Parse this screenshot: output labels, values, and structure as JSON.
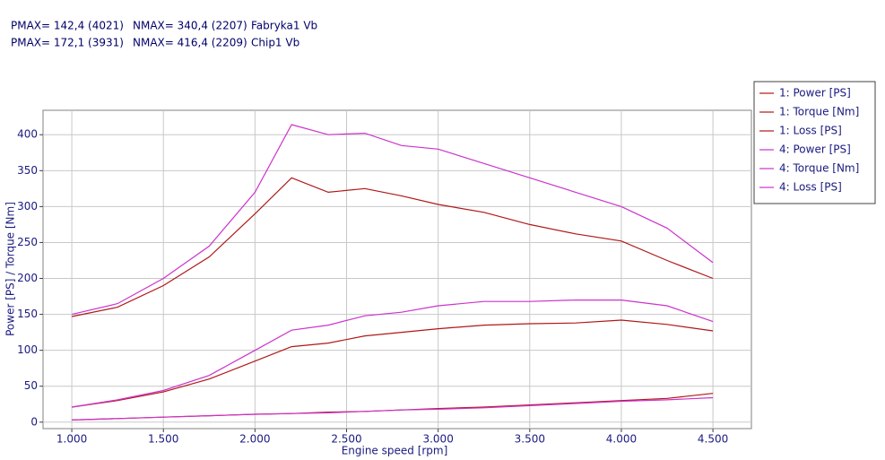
{
  "chart_data": {
    "type": "line",
    "annotations": [
      [
        "PMAX= 142,4 (4021)",
        "NMAX= 340,4 (2207)",
        "Fabryka1 Vb"
      ],
      [
        "PMAX= 172,1 (3931)",
        "NMAX= 416,4 (2209)",
        "Chip1 Vb"
      ]
    ],
    "x_label": "Engine speed [rpm]",
    "y_label": "Power [PS] / Torque [Nm]",
    "x": [
      1000,
      1250,
      1500,
      1750,
      2000,
      2200,
      2400,
      2600,
      2800,
      3000,
      3250,
      3500,
      3750,
      4000,
      4250,
      4500
    ],
    "series": [
      {
        "name": "1: Power [PS]",
        "color": "#b01818",
        "values": [
          21,
          30,
          42,
          60,
          85,
          105,
          110,
          120,
          125,
          130,
          135,
          137,
          138,
          142,
          136,
          127
        ]
      },
      {
        "name": "1: Torque [Nm]",
        "color": "#b01818",
        "values": [
          147,
          160,
          190,
          230,
          290,
          340,
          320,
          325,
          315,
          303,
          292,
          275,
          262,
          252,
          225,
          200
        ]
      },
      {
        "name": "1: Loss [PS]",
        "color": "#b01818",
        "values": [
          3,
          5,
          7,
          9,
          11,
          12,
          14,
          15,
          17,
          19,
          21,
          24,
          27,
          30,
          33,
          40
        ]
      },
      {
        "name": "4: Power [PS]",
        "color": "#cc33cc",
        "values": [
          21,
          31,
          44,
          65,
          100,
          128,
          135,
          148,
          153,
          162,
          168,
          168,
          170,
          170,
          162,
          140
        ]
      },
      {
        "name": "4: Torque [Nm]",
        "color": "#cc33cc",
        "values": [
          150,
          165,
          200,
          245,
          320,
          414,
          400,
          402,
          385,
          380,
          360,
          340,
          320,
          300,
          270,
          222
        ]
      },
      {
        "name": "4: Loss [PS]",
        "color": "#cc33cc",
        "values": [
          3,
          5,
          7,
          9,
          11,
          12,
          13,
          15,
          17,
          18,
          20,
          23,
          26,
          29,
          31,
          34
        ]
      }
    ],
    "xlim": [
      843,
      4710
    ],
    "ylim": [
      -9,
      434
    ],
    "xticks": [
      {
        "value": 1000,
        "label": "1.000"
      },
      {
        "value": 1500,
        "label": "1.500"
      },
      {
        "value": 2000,
        "label": "2.000"
      },
      {
        "value": 2500,
        "label": "2.500"
      },
      {
        "value": 3000,
        "label": "3.000"
      },
      {
        "value": 3500,
        "label": "3.500"
      },
      {
        "value": 4000,
        "label": "4.000"
      },
      {
        "value": 4500,
        "label": "4.500"
      }
    ],
    "yticks": [
      0,
      50,
      100,
      150,
      200,
      250,
      300,
      350,
      400
    ],
    "grid": true,
    "legend": "outside-right"
  }
}
